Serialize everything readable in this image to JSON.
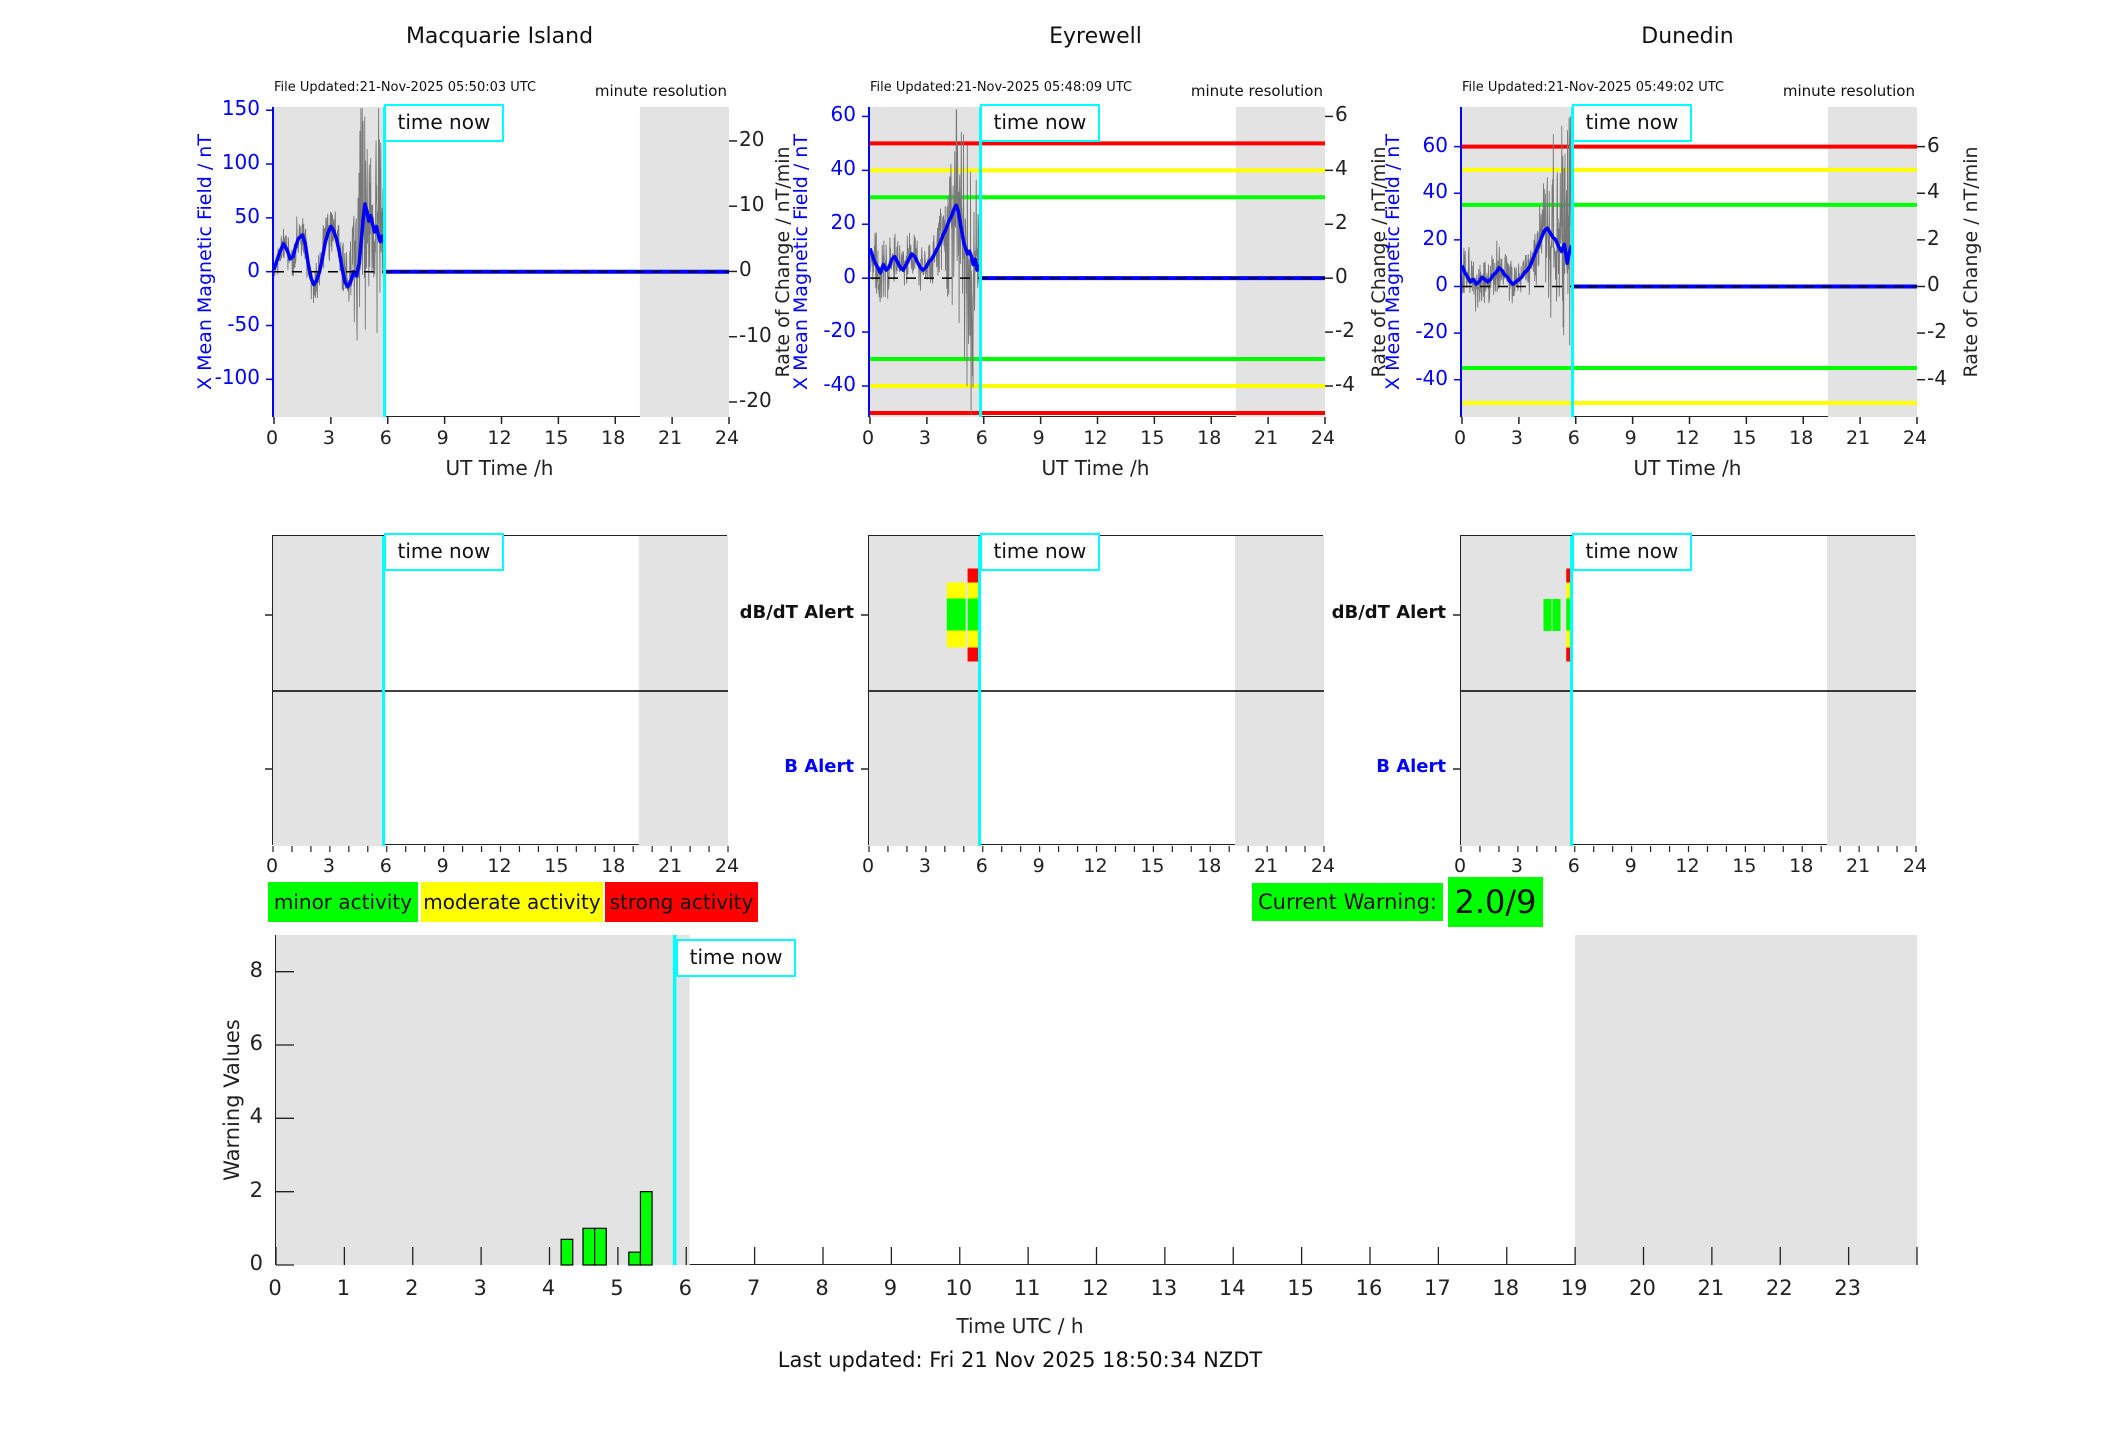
{
  "time_now_label": "time now",
  "time_now_hour": 5.83,
  "last_updated": "Last updated: Fri 21 Nov 2025 18:50:34 NZDT",
  "colors": {
    "night_shade": "#e3e3e3",
    "mean_field": "#0000ff",
    "noise": "#787878",
    "time_now": "#00ffff",
    "minor": "#00ff00",
    "moderate": "#ffff00",
    "strong": "#ff0000",
    "axis_left": "#0000ff"
  },
  "legend": {
    "items": [
      {
        "label": "minor activity",
        "color": "#00ff00"
      },
      {
        "label": "moderate activity",
        "color": "#ffff00"
      },
      {
        "label": "strong activity",
        "color": "#ff0000"
      }
    ],
    "current_warning_label": "Current Warning:",
    "current_warning_value": "2.0/9",
    "current_warning_color": "#00ff00"
  },
  "chart_data": {
    "type": "multi-panel",
    "stations": [
      {
        "title": "Macquarie Island",
        "file_updated": "File Updated:21-Nov-2025 05:50:03 UTC",
        "resolution_note": "minute resolution",
        "xlabel": "UT Time /h",
        "x_ticks": [
          0,
          3,
          6,
          9,
          12,
          15,
          18,
          21,
          24
        ],
        "left_axis": {
          "label": "X Mean Magnetic Field / nT",
          "ticks": [
            150,
            100,
            50,
            0,
            -50,
            -100
          ],
          "min": -135,
          "max": 153
        },
        "right_axis": {
          "label": "Rate of Change / nT/min",
          "ticks": [
            20,
            10,
            0,
            -10,
            -20
          ],
          "min": -22.3,
          "max": 25.2
        },
        "thresholds": [],
        "night_regions": [
          [
            0,
            5.83
          ],
          [
            19.3,
            24
          ]
        ],
        "post_time_now_value": 0,
        "mean_field_series": [
          [
            0,
            2
          ],
          [
            0.15,
            10
          ],
          [
            0.3,
            18
          ],
          [
            0.5,
            26
          ],
          [
            0.7,
            20
          ],
          [
            0.85,
            12
          ],
          [
            1.0,
            14
          ],
          [
            1.15,
            24
          ],
          [
            1.3,
            31
          ],
          [
            1.5,
            34
          ],
          [
            1.65,
            26
          ],
          [
            1.8,
            8
          ],
          [
            1.95,
            -6
          ],
          [
            2.1,
            -12
          ],
          [
            2.25,
            -8
          ],
          [
            2.4,
            0
          ],
          [
            2.55,
            12
          ],
          [
            2.7,
            27
          ],
          [
            2.85,
            36
          ],
          [
            3.0,
            42
          ],
          [
            3.15,
            38
          ],
          [
            3.3,
            30
          ],
          [
            3.45,
            18
          ],
          [
            3.6,
            2
          ],
          [
            3.75,
            -10
          ],
          [
            3.9,
            -14
          ],
          [
            4.05,
            -9
          ],
          [
            4.2,
            0
          ],
          [
            4.35,
            -4
          ],
          [
            4.5,
            8
          ],
          [
            4.6,
            28
          ],
          [
            4.7,
            48
          ],
          [
            4.8,
            63
          ],
          [
            4.9,
            56
          ],
          [
            5.0,
            47
          ],
          [
            5.1,
            52
          ],
          [
            5.2,
            44
          ],
          [
            5.3,
            37
          ],
          [
            5.4,
            42
          ],
          [
            5.5,
            34
          ],
          [
            5.6,
            28
          ],
          [
            5.7,
            33
          ],
          [
            5.83,
            26
          ]
        ],
        "noise_envelope": [
          [
            0,
            10
          ],
          [
            0.5,
            14
          ],
          [
            1.0,
            16
          ],
          [
            1.5,
            14
          ],
          [
            2.0,
            18
          ],
          [
            2.5,
            16
          ],
          [
            3.0,
            20
          ],
          [
            3.5,
            18
          ],
          [
            4.0,
            24
          ],
          [
            4.3,
            45
          ],
          [
            4.5,
            80
          ],
          [
            4.7,
            95
          ],
          [
            4.9,
            70
          ],
          [
            5.1,
            55
          ],
          [
            5.3,
            75
          ],
          [
            5.5,
            90
          ],
          [
            5.7,
            50
          ],
          [
            5.83,
            35
          ]
        ]
      },
      {
        "title": "Eyrewell",
        "file_updated": "File Updated:21-Nov-2025 05:48:09 UTC",
        "resolution_note": "minute resolution",
        "xlabel": "UT Time /h",
        "x_ticks": [
          0,
          3,
          6,
          9,
          12,
          15,
          18,
          21,
          24
        ],
        "left_axis": {
          "label": "X Mean Magnetic Field / nT",
          "ticks": [
            60,
            40,
            20,
            0,
            -20,
            -40
          ],
          "min": -51.5,
          "max": 63.5
        },
        "right_axis": {
          "label": "Rate of Change / nT/min",
          "ticks": [
            6,
            4,
            2,
            0,
            -2,
            -4
          ],
          "min": -5.15,
          "max": 6.35
        },
        "thresholds": [
          {
            "value": 30,
            "level": "minor"
          },
          {
            "value": 40,
            "level": "moderate"
          },
          {
            "value": 50,
            "level": "strong"
          }
        ],
        "night_regions": [
          [
            0,
            5.83
          ],
          [
            19.3,
            24
          ]
        ],
        "post_time_now_value": 0,
        "mean_field_series": [
          [
            0,
            11
          ],
          [
            0.1,
            9
          ],
          [
            0.25,
            6
          ],
          [
            0.4,
            4
          ],
          [
            0.55,
            2
          ],
          [
            0.7,
            5
          ],
          [
            0.85,
            3
          ],
          [
            1.0,
            4
          ],
          [
            1.15,
            7
          ],
          [
            1.3,
            8
          ],
          [
            1.45,
            6
          ],
          [
            1.6,
            4
          ],
          [
            1.75,
            3
          ],
          [
            1.9,
            5
          ],
          [
            2.05,
            7
          ],
          [
            2.2,
            9
          ],
          [
            2.35,
            8
          ],
          [
            2.5,
            6
          ],
          [
            2.65,
            4
          ],
          [
            2.8,
            3
          ],
          [
            2.95,
            4
          ],
          [
            3.1,
            6
          ],
          [
            3.25,
            7
          ],
          [
            3.4,
            9
          ],
          [
            3.55,
            11
          ],
          [
            3.7,
            13
          ],
          [
            3.85,
            16
          ],
          [
            4.0,
            18
          ],
          [
            4.15,
            21
          ],
          [
            4.3,
            23
          ],
          [
            4.45,
            26
          ],
          [
            4.55,
            27
          ],
          [
            4.65,
            25
          ],
          [
            4.75,
            21
          ],
          [
            4.85,
            17
          ],
          [
            4.95,
            13
          ],
          [
            5.05,
            11
          ],
          [
            5.15,
            9
          ],
          [
            5.25,
            10
          ],
          [
            5.35,
            8
          ],
          [
            5.45,
            5
          ],
          [
            5.55,
            7
          ],
          [
            5.65,
            3
          ],
          [
            5.75,
            4
          ],
          [
            5.83,
            5
          ]
        ],
        "noise_envelope": [
          [
            0,
            7
          ],
          [
            0.5,
            8
          ],
          [
            1.0,
            7
          ],
          [
            1.5,
            6
          ],
          [
            2.0,
            7
          ],
          [
            2.5,
            6
          ],
          [
            3.0,
            5
          ],
          [
            3.5,
            7
          ],
          [
            3.9,
            10
          ],
          [
            4.2,
            20
          ],
          [
            4.5,
            30
          ],
          [
            4.8,
            25
          ],
          [
            5.0,
            35
          ],
          [
            5.2,
            45
          ],
          [
            5.4,
            35
          ],
          [
            5.6,
            25
          ],
          [
            5.83,
            18
          ]
        ]
      },
      {
        "title": "Dunedin",
        "file_updated": "File Updated:21-Nov-2025 05:49:02 UTC",
        "resolution_note": "minute resolution",
        "xlabel": "UT Time /h",
        "x_ticks": [
          0,
          3,
          6,
          9,
          12,
          15,
          18,
          21,
          24
        ],
        "left_axis": {
          "label": "X Mean Magnetic Field / nT",
          "ticks": [
            60,
            40,
            20,
            0,
            -20,
            -40
          ],
          "min": -56,
          "max": 77
        },
        "right_axis": {
          "label": "Rate of Change / nT/min",
          "ticks": [
            6,
            4,
            2,
            0,
            -2,
            -4
          ],
          "min": -5.6,
          "max": 7.7
        },
        "thresholds": [
          {
            "value": 35,
            "level": "minor"
          },
          {
            "value": 50,
            "level": "moderate"
          },
          {
            "value": 60,
            "level": "strong"
          }
        ],
        "night_regions": [
          [
            0,
            5.83
          ],
          [
            19.3,
            24
          ]
        ],
        "post_time_now_value": 0,
        "mean_field_series": [
          [
            0,
            9
          ],
          [
            0.15,
            6
          ],
          [
            0.3,
            4
          ],
          [
            0.45,
            2
          ],
          [
            0.6,
            3
          ],
          [
            0.75,
            1
          ],
          [
            0.9,
            2
          ],
          [
            1.05,
            4
          ],
          [
            1.2,
            3
          ],
          [
            1.35,
            2
          ],
          [
            1.5,
            3
          ],
          [
            1.65,
            5
          ],
          [
            1.8,
            6
          ],
          [
            1.95,
            8
          ],
          [
            2.1,
            7
          ],
          [
            2.25,
            5
          ],
          [
            2.4,
            4
          ],
          [
            2.55,
            2
          ],
          [
            2.7,
            1
          ],
          [
            2.85,
            2
          ],
          [
            3.0,
            3
          ],
          [
            3.15,
            4
          ],
          [
            3.3,
            6
          ],
          [
            3.45,
            7
          ],
          [
            3.6,
            9
          ],
          [
            3.75,
            12
          ],
          [
            3.9,
            15
          ],
          [
            4.05,
            18
          ],
          [
            4.2,
            21
          ],
          [
            4.35,
            24
          ],
          [
            4.5,
            25
          ],
          [
            4.65,
            23
          ],
          [
            4.8,
            21
          ],
          [
            4.95,
            20
          ],
          [
            5.1,
            17
          ],
          [
            5.25,
            15
          ],
          [
            5.4,
            18
          ],
          [
            5.55,
            10
          ],
          [
            5.65,
            14
          ],
          [
            5.75,
            17
          ],
          [
            5.83,
            16
          ]
        ],
        "noise_envelope": [
          [
            0,
            9
          ],
          [
            0.5,
            11
          ],
          [
            1.0,
            9
          ],
          [
            1.5,
            7
          ],
          [
            2.0,
            9
          ],
          [
            2.5,
            7
          ],
          [
            3.0,
            5
          ],
          [
            3.5,
            7
          ],
          [
            3.9,
            10
          ],
          [
            4.2,
            15
          ],
          [
            4.5,
            22
          ],
          [
            4.8,
            30
          ],
          [
            5.0,
            26
          ],
          [
            5.2,
            30
          ],
          [
            5.4,
            38
          ],
          [
            5.6,
            50
          ],
          [
            5.75,
            55
          ],
          [
            5.83,
            30
          ]
        ]
      }
    ],
    "alert_row": {
      "db_dt_label": "dB/dT Alert",
      "b_label": "B Alert",
      "x_ticks": [
        0,
        3,
        6,
        9,
        12,
        15,
        18,
        21,
        24
      ],
      "night_regions": [
        [
          0,
          5.83
        ],
        [
          19.3,
          24
        ]
      ],
      "blocks": {
        "macquarie": [],
        "eyrewell": [
          {
            "t0": 4.1,
            "t1": 5.1,
            "bands": [
              [
                "moderate",
                16
              ],
              [
                "minor",
                32
              ],
              [
                "moderate",
                17
              ]
            ]
          },
          {
            "t0": 5.2,
            "t1": 5.78,
            "bands": [
              [
                "strong",
                14
              ],
              [
                "moderate",
                16
              ],
              [
                "minor",
                32
              ],
              [
                "moderate",
                17
              ],
              [
                "strong",
                14
              ]
            ]
          }
        ],
        "dunedin": [
          {
            "t0": 4.35,
            "t1": 4.78,
            "bands": [
              [
                "minor",
                32
              ]
            ]
          },
          {
            "t0": 4.82,
            "t1": 5.25,
            "bands": [
              [
                "minor",
                32
              ]
            ]
          },
          {
            "t0": 5.55,
            "t1": 5.85,
            "bands": [
              [
                "strong",
                14
              ],
              [
                "moderate",
                16
              ],
              [
                "minor",
                32
              ],
              [
                "moderate",
                17
              ],
              [
                "strong",
                14
              ]
            ]
          }
        ]
      }
    },
    "warning_chart": {
      "ylabel": "Warning Values",
      "xlabel": "Time UTC / h",
      "y_ticks": [
        0,
        2,
        4,
        6,
        8
      ],
      "y_max": 9,
      "x_ticks": [
        0,
        1,
        2,
        3,
        4,
        5,
        6,
        7,
        8,
        9,
        10,
        11,
        12,
        13,
        14,
        15,
        16,
        17,
        18,
        19,
        20,
        21,
        22,
        23
      ],
      "x_max": 24,
      "night_regions": [
        [
          0,
          6.05
        ],
        [
          19,
          24
        ]
      ],
      "bar_color": "#00ff00",
      "bars": [
        {
          "t0": 4.17,
          "t1": 4.34,
          "value": 0.7
        },
        {
          "t0": 4.49,
          "t1": 4.66,
          "value": 1.0
        },
        {
          "t0": 4.66,
          "t1": 4.83,
          "value": 1.0
        },
        {
          "t0": 5.16,
          "t1": 5.33,
          "value": 0.35
        },
        {
          "t0": 5.33,
          "t1": 5.5,
          "value": 2.0
        }
      ]
    }
  }
}
